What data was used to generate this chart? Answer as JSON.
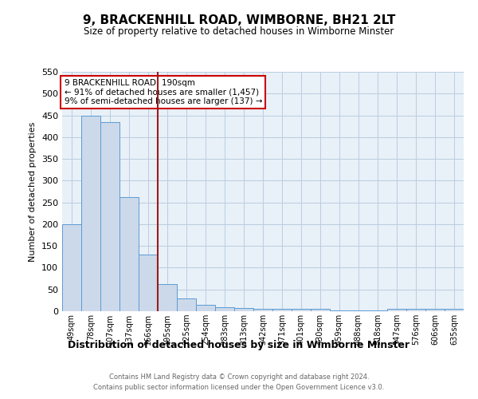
{
  "title": "9, BRACKENHILL ROAD, WIMBORNE, BH21 2LT",
  "subtitle": "Size of property relative to detached houses in Wimborne Minster",
  "xlabel": "Distribution of detached houses by size in Wimborne Minster",
  "ylabel": "Number of detached properties",
  "footer1": "Contains HM Land Registry data © Crown copyright and database right 2024.",
  "footer2": "Contains public sector information licensed under the Open Government Licence v3.0.",
  "categories": [
    "49sqm",
    "78sqm",
    "107sqm",
    "137sqm",
    "166sqm",
    "195sqm",
    "225sqm",
    "254sqm",
    "283sqm",
    "313sqm",
    "342sqm",
    "371sqm",
    "401sqm",
    "430sqm",
    "459sqm",
    "488sqm",
    "518sqm",
    "547sqm",
    "576sqm",
    "606sqm",
    "635sqm"
  ],
  "values": [
    200,
    450,
    435,
    263,
    130,
    63,
    30,
    15,
    10,
    8,
    5,
    5,
    5,
    5,
    2,
    2,
    2,
    5,
    5,
    5,
    5
  ],
  "bar_color": "#ccd9ea",
  "bar_edge_color": "#5b9bd5",
  "property_line_index": 4,
  "property_line_color": "#9b1b1b",
  "annotation_text": "9 BRACKENHILL ROAD: 190sqm\n← 91% of detached houses are smaller (1,457)\n9% of semi-detached houses are larger (137) →",
  "annotation_box_color": "#cc0000",
  "ylim": [
    0,
    550
  ],
  "yticks": [
    0,
    50,
    100,
    150,
    200,
    250,
    300,
    350,
    400,
    450,
    500,
    550
  ],
  "background_color": "#ffffff",
  "grid_color": "#bbcde0"
}
